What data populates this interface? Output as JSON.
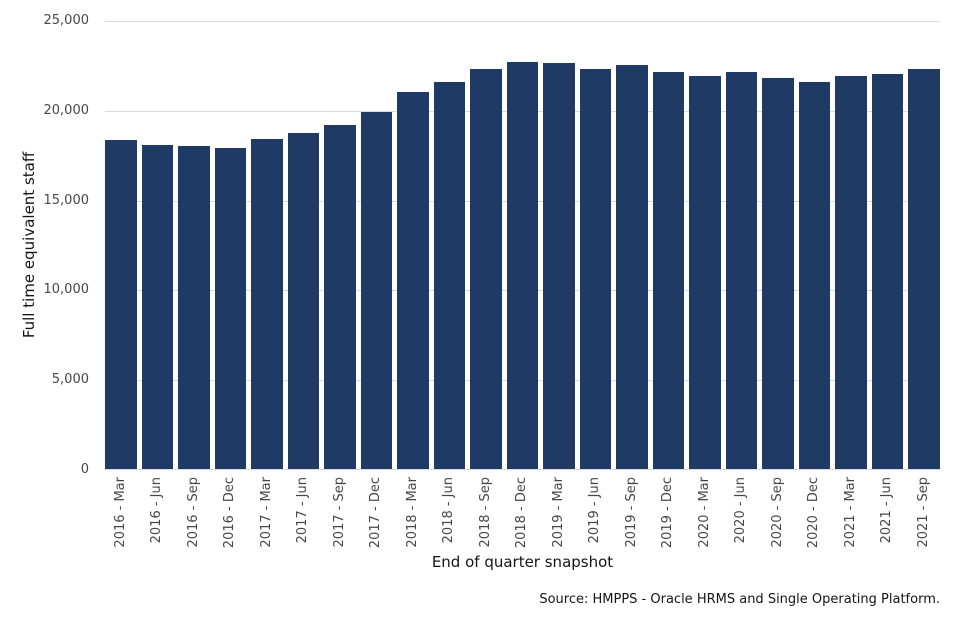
{
  "chart_data": {
    "type": "bar",
    "title": "",
    "xlabel": "End of quarter snapshot",
    "ylabel": "Full time equivalent staff",
    "categories": [
      "2016 - Mar",
      "2016 - Jun",
      "2016 - Sep",
      "2016 - Dec",
      "2017 - Mar",
      "2017 - Jun",
      "2017 - Sep",
      "2017 - Dec",
      "2018 - Mar",
      "2018 - Jun",
      "2018 - Sep",
      "2018 - Dec",
      "2019 - Mar",
      "2019 - Jun",
      "2019 - Sep",
      "2019 - Dec",
      "2020 - Mar",
      "2020 - Jun",
      "2020 - Sep",
      "2020 - Dec",
      "2021 - Mar",
      "2021 - Jun",
      "2021 - Sep"
    ],
    "values": [
      18300,
      18050,
      18000,
      17850,
      18400,
      18700,
      19150,
      19900,
      21000,
      21550,
      22300,
      22650,
      22600,
      22250,
      22500,
      22100,
      21900,
      22100,
      21750,
      21550,
      21900,
      22000,
      22300
    ],
    "ylim": [
      0,
      25000
    ],
    "yticks": [
      0,
      5000,
      10000,
      15000,
      20000,
      25000
    ],
    "ytick_labels": [
      "0",
      "5,000",
      "10,000",
      "15,000",
      "20,000",
      "25,000"
    ],
    "grid": "horizontal",
    "legend": "none",
    "bar_color": "#1f3a64",
    "gridline_color": "#d9d9d9"
  },
  "source_note": "Source: HMPPS - Oracle HRMS and Single Operating Platform."
}
